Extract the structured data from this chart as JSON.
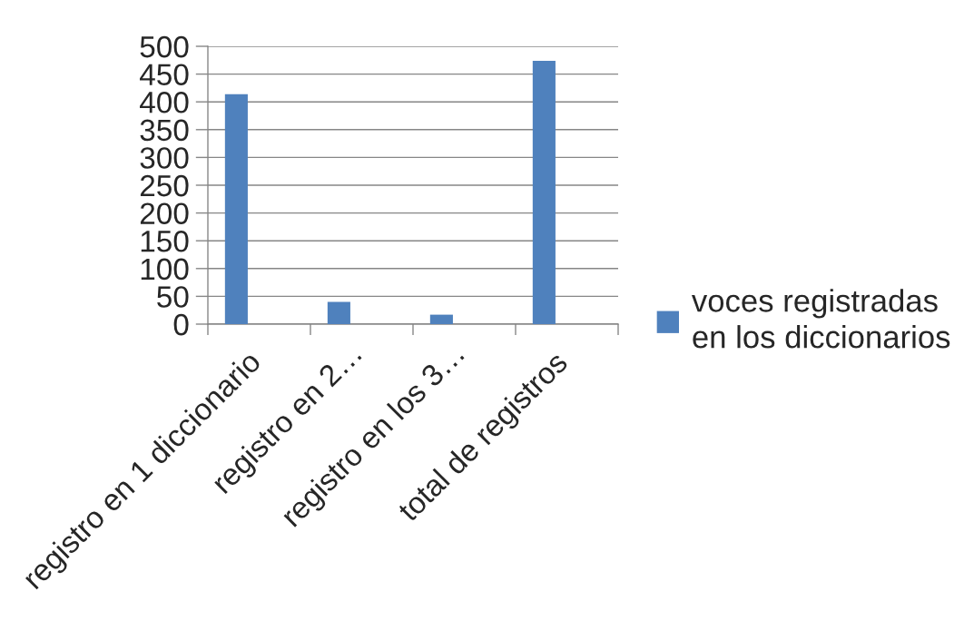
{
  "chart_data": {
    "type": "bar",
    "categories": [
      "registro en 1 diccionario",
      "registro en 2…",
      "registro en los 3…",
      "total de registros"
    ],
    "series": [
      {
        "name": "voces registradas en los diccionarios",
        "color": "#4f81bd",
        "values": [
          414,
          40,
          17,
          474
        ]
      }
    ],
    "ylim": [
      0,
      500
    ],
    "yticks": [
      0,
      50,
      100,
      150,
      200,
      250,
      300,
      350,
      400,
      450,
      500
    ],
    "grid": "y",
    "legend": "right"
  }
}
